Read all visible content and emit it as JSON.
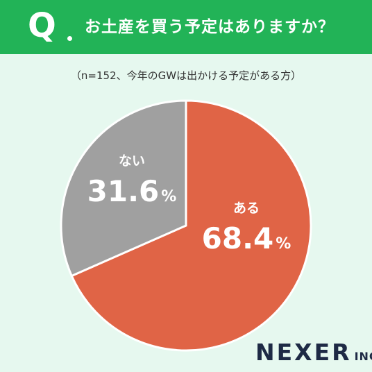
{
  "header": {
    "q_mark": "Q",
    "question": "お土産を買う予定はありますか？"
  },
  "note": "（n=152、今年のGWは出かける予定がある方）",
  "chart_data": {
    "type": "pie",
    "title": "お土産を買う予定はありますか？",
    "slices": [
      {
        "label": "ある",
        "value": 68.4,
        "value_text": "68.4",
        "color": "#e06446"
      },
      {
        "label": "ない",
        "value": 31.6,
        "value_text": "31.6",
        "color": "#a0a0a0"
      }
    ],
    "unit": "%"
  },
  "brand": {
    "main": "NEXER",
    "sub": "INC."
  }
}
